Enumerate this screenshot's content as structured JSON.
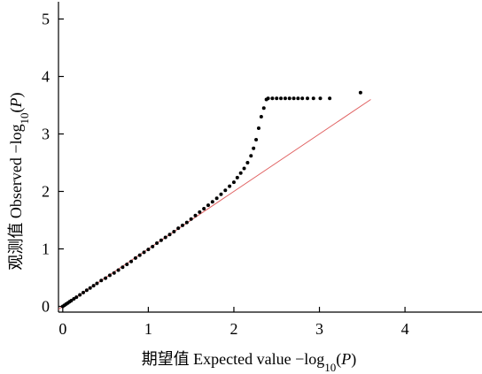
{
  "chart_data": {
    "type": "scatter",
    "title": "",
    "xlabel": "期望值 Expected value −log10(P)",
    "ylabel": "观测值 Observed −log10(P)",
    "xlabel_parts": {
      "prefix": "期望值 Expected value −log",
      "sub": "10",
      "paren_open": "(",
      "italic": "P",
      "paren_close": ")"
    },
    "ylabel_parts": {
      "prefix": "观测值 Observed −log",
      "sub": "10",
      "paren_open": "(",
      "italic": "P",
      "paren_close": ")"
    },
    "xlim": [
      -0.05,
      4.9
    ],
    "ylim": [
      -0.1,
      5.3
    ],
    "x_ticks": [
      0,
      1,
      2,
      3,
      4
    ],
    "y_ticks": [
      0,
      1,
      2,
      3,
      4,
      5
    ],
    "x_tick_labels": [
      "0",
      "1",
      "2",
      "3",
      "4"
    ],
    "y_tick_labels": [
      "0",
      "1",
      "2",
      "3",
      "4",
      "5"
    ],
    "grid": false,
    "legend": "none",
    "point_color": "#000000",
    "reference_line": {
      "x": [
        -0.05,
        3.6
      ],
      "y": [
        -0.05,
        3.6
      ],
      "color": "#e06060"
    },
    "series": [
      {
        "points": [
          [
            0.0,
            0.0
          ],
          [
            0.02,
            0.02
          ],
          [
            0.04,
            0.04
          ],
          [
            0.06,
            0.06
          ],
          [
            0.08,
            0.08
          ],
          [
            0.1,
            0.1
          ],
          [
            0.13,
            0.13
          ],
          [
            0.16,
            0.16
          ],
          [
            0.2,
            0.2
          ],
          [
            0.24,
            0.24
          ],
          [
            0.28,
            0.28
          ],
          [
            0.32,
            0.32
          ],
          [
            0.36,
            0.36
          ],
          [
            0.4,
            0.4
          ],
          [
            0.45,
            0.45
          ],
          [
            0.5,
            0.49
          ],
          [
            0.55,
            0.54
          ],
          [
            0.6,
            0.58
          ],
          [
            0.65,
            0.63
          ],
          [
            0.7,
            0.68
          ],
          [
            0.75,
            0.73
          ],
          [
            0.8,
            0.78
          ],
          [
            0.85,
            0.84
          ],
          [
            0.9,
            0.89
          ],
          [
            0.95,
            0.94
          ],
          [
            1.0,
            0.99
          ],
          [
            1.05,
            1.04
          ],
          [
            1.1,
            1.1
          ],
          [
            1.15,
            1.15
          ],
          [
            1.2,
            1.2
          ],
          [
            1.25,
            1.25
          ],
          [
            1.3,
            1.3
          ],
          [
            1.35,
            1.36
          ],
          [
            1.4,
            1.41
          ],
          [
            1.45,
            1.46
          ],
          [
            1.5,
            1.52
          ],
          [
            1.55,
            1.58
          ],
          [
            1.6,
            1.64
          ],
          [
            1.65,
            1.7
          ],
          [
            1.7,
            1.76
          ],
          [
            1.75,
            1.82
          ],
          [
            1.8,
            1.88
          ],
          [
            1.85,
            1.95
          ],
          [
            1.9,
            2.02
          ],
          [
            1.95,
            2.09
          ],
          [
            2.0,
            2.16
          ],
          [
            2.04,
            2.24
          ],
          [
            2.08,
            2.32
          ],
          [
            2.12,
            2.4
          ],
          [
            2.16,
            2.5
          ],
          [
            2.2,
            2.62
          ],
          [
            2.23,
            2.75
          ],
          [
            2.26,
            2.9
          ],
          [
            2.29,
            3.1
          ],
          [
            2.32,
            3.3
          ],
          [
            2.35,
            3.45
          ],
          [
            2.38,
            3.6
          ],
          [
            2.4,
            3.62
          ],
          [
            2.45,
            3.62
          ],
          [
            2.5,
            3.62
          ],
          [
            2.55,
            3.62
          ],
          [
            2.6,
            3.62
          ],
          [
            2.65,
            3.62
          ],
          [
            2.7,
            3.62
          ],
          [
            2.75,
            3.62
          ],
          [
            2.8,
            3.62
          ],
          [
            2.86,
            3.62
          ],
          [
            2.93,
            3.62
          ],
          [
            3.01,
            3.62
          ],
          [
            3.12,
            3.62
          ],
          [
            3.48,
            3.72
          ]
        ]
      }
    ]
  }
}
